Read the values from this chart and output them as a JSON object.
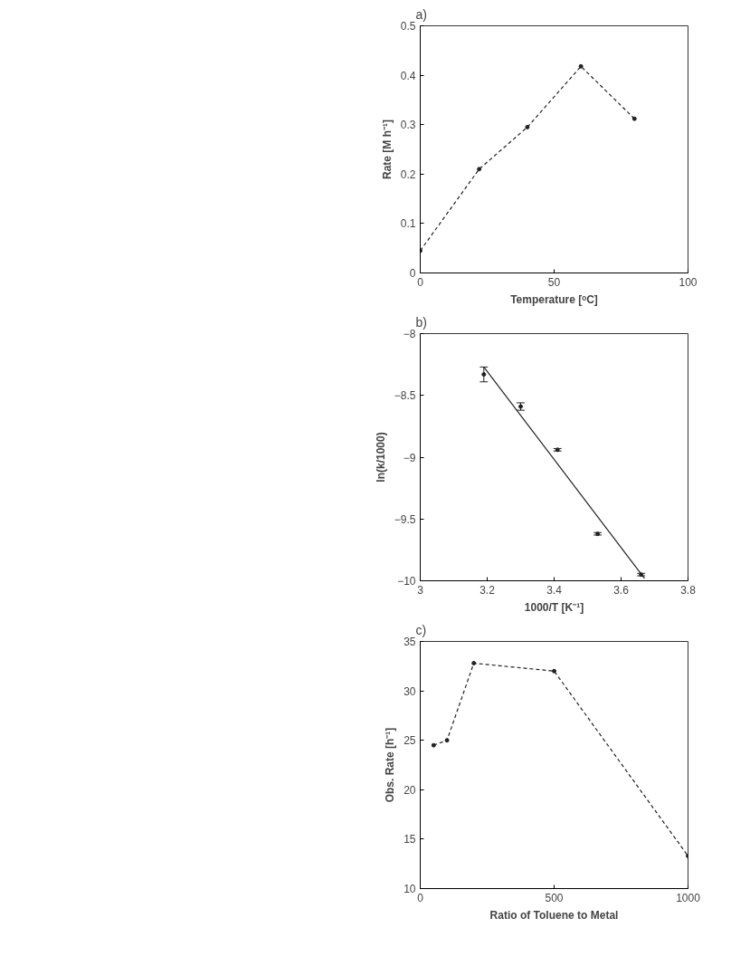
{
  "chart_data": [
    {
      "type": "line",
      "title": "a)",
      "xlabel": "Temperature [ᵒC]",
      "ylabel": "Rate [M h⁻¹]",
      "x": [
        0,
        22,
        40,
        60,
        80
      ],
      "series": [
        {
          "color": "#222222",
          "values": [
            0.045,
            0.21,
            0.295,
            0.418,
            0.312
          ]
        }
      ],
      "xlim": [
        0,
        100
      ],
      "ylim": [
        0,
        0.5
      ],
      "xticks": [
        0,
        50,
        100
      ],
      "yticks": [
        0,
        0.1,
        0.2,
        0.3,
        0.4,
        0.5
      ],
      "marker": "circle",
      "line_style": "dashed",
      "grid": false
    },
    {
      "type": "scatter",
      "title": "b)",
      "xlabel": "1000/T [K⁻¹]",
      "ylabel": "ln(k/1000)",
      "x": [
        3.19,
        3.3,
        3.41,
        3.53,
        3.66
      ],
      "series": [
        {
          "color": "#222222",
          "values": [
            -8.33,
            -8.59,
            -8.94,
            -9.62,
            -9.95
          ],
          "errors": [
            0.06,
            0.03,
            0.01,
            0.01,
            0.01
          ]
        },
        {
          "type": "line",
          "marker": "none",
          "color": "#222222",
          "x": [
            3.19,
            3.67
          ],
          "values": [
            -8.27,
            -9.98
          ]
        }
      ],
      "xlim": [
        3,
        3.8
      ],
      "ylim": [
        -10,
        -8
      ],
      "xticks": [
        3,
        3.2,
        3.4,
        3.6,
        3.8
      ],
      "yticks": [
        -10,
        -9.5,
        -9,
        -8.5,
        -8
      ],
      "marker": "circle",
      "grid": false
    },
    {
      "type": "line",
      "title": "c)",
      "xlabel": "Ratio of Toluene to Metal",
      "ylabel": "Obs. Rate [h⁻¹]",
      "x": [
        50,
        100,
        200,
        500,
        1000
      ],
      "series": [
        {
          "color": "#222222",
          "values": [
            24.5,
            25,
            32.8,
            32,
            13.3
          ]
        }
      ],
      "xlim": [
        0,
        1000
      ],
      "ylim": [
        10,
        35
      ],
      "xticks": [
        0,
        500,
        1000
      ],
      "yticks": [
        10,
        15,
        20,
        25,
        30,
        35
      ],
      "marker": "circle",
      "line_style": "dashed",
      "grid": false
    }
  ]
}
